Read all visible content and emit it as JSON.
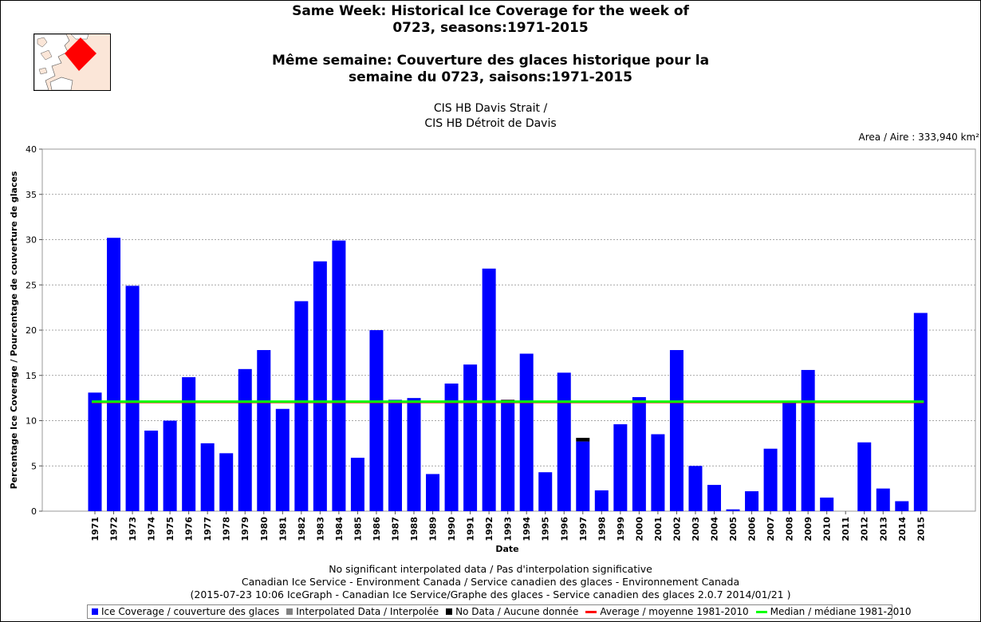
{
  "chart_data": {
    "type": "bar",
    "title_en": "Same Week: Historical Ice Coverage for the week of 0723, seasons:1971-2015",
    "title_en_line1": "Same Week: Historical Ice Coverage for the week of",
    "title_en_line2": "0723, seasons:1971-2015",
    "title_fr_line1": "Même semaine: Couverture des glaces historique pour la",
    "title_fr_line2": "semaine du 0723, saisons:1971-2015",
    "subtitle_line1": "CIS HB Davis Strait /",
    "subtitle_line2": "CIS HB Détroit de Davis",
    "area_label": "Area / Aire : 333,940 km²",
    "xlabel": "Date",
    "ylabel": "Percentage Ice Coverage / Pourcentage de couverture de glaces",
    "ylim": [
      0,
      40
    ],
    "yticks": [
      "0",
      "5",
      "10",
      "15",
      "20",
      "25",
      "30",
      "35",
      "40"
    ],
    "grid": true,
    "legend_position": "bottom",
    "categories": [
      "1971",
      "1972",
      "1973",
      "1974",
      "1975",
      "1976",
      "1977",
      "1978",
      "1979",
      "1980",
      "1981",
      "1982",
      "1983",
      "1984",
      "1985",
      "1986",
      "1987",
      "1988",
      "1989",
      "1990",
      "1991",
      "1992",
      "1993",
      "1994",
      "1995",
      "1996",
      "1997",
      "1998",
      "1999",
      "2000",
      "2001",
      "2002",
      "2003",
      "2004",
      "2005",
      "2006",
      "2007",
      "2008",
      "2009",
      "2010",
      "2011",
      "2012",
      "2013",
      "2014",
      "2015"
    ],
    "series": [
      {
        "name": "Ice Coverage / couverture des glaces",
        "color": "#0000ff",
        "values": [
          13.1,
          30.2,
          24.9,
          8.9,
          10.0,
          14.8,
          7.5,
          6.4,
          15.7,
          17.8,
          11.3,
          23.2,
          27.6,
          29.9,
          5.9,
          20.0,
          12.3,
          12.5,
          4.1,
          14.1,
          16.2,
          26.8,
          12.2,
          17.4,
          4.3,
          15.3,
          7.7,
          2.3,
          9.6,
          12.6,
          8.5,
          17.8,
          5.0,
          2.9,
          0.2,
          2.2,
          6.9,
          12.0,
          15.6,
          1.5,
          0.0,
          7.6,
          2.5,
          1.1,
          21.9
        ]
      },
      {
        "name": "Interpolated Data / Interpolée",
        "color": "#808080",
        "values": [
          0,
          0,
          0,
          0,
          0,
          0,
          0,
          0,
          0,
          0,
          0,
          0,
          0,
          0,
          0,
          0,
          0,
          0,
          0,
          0,
          0,
          0,
          0,
          0,
          0,
          0,
          0,
          0,
          0,
          0,
          0,
          0,
          0,
          0,
          0,
          0,
          0,
          0,
          0,
          0,
          0,
          0,
          0,
          0,
          0
        ]
      },
      {
        "name": "No Data / Aucune donnée",
        "color": "#000000",
        "values": [
          0,
          0,
          0,
          0,
          0,
          0,
          0,
          0,
          0,
          0,
          0,
          0,
          0,
          0,
          0,
          0,
          0,
          0,
          0,
          0,
          0,
          0,
          0.1,
          0,
          0,
          0,
          0.4,
          0,
          0,
          0,
          0,
          0,
          0,
          0,
          0,
          0,
          0,
          0,
          0,
          0,
          0,
          0,
          0,
          0,
          0
        ]
      }
    ],
    "reference_lines": [
      {
        "name": "Average / moyenne 1981-2010",
        "color": "#ff0000",
        "value": 12.1
      },
      {
        "name": "Median / médiane 1981-2010",
        "color": "#00ff00",
        "value": 12.1
      }
    ],
    "footer_line1": "No significant interpolated data / Pas d'interpolation significative",
    "footer_line2": "Canadian Ice Service - Environment Canada / Service canadien des glaces - Environnement Canada",
    "footer_line3": "(2015-07-23 10:06 IceGraph - Canadian Ice Service/Graphe des glaces - Service canadien des glaces 2.0.7 2014/01/21 )"
  }
}
